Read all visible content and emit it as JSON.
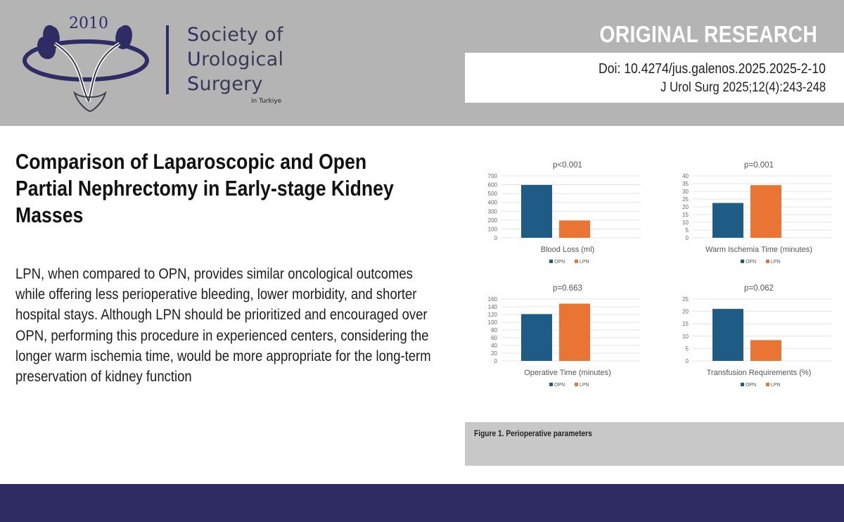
{
  "header": {
    "logo": {
      "year": "2010"
    },
    "society_lines": [
      {
        "initial": "S",
        "rest": "ociety of"
      },
      {
        "initial": "U",
        "rest": "rological"
      },
      {
        "initial": "S",
        "rest": "urgery"
      }
    ],
    "society_suffix": "in Turkiye",
    "section_label": "ORIGINAL RESEARCH",
    "doi": "Doi: 10.4274/jus.galenos.2025.2025-2-10",
    "citation": "J Urol Surg 2025;12(4):243-248"
  },
  "article": {
    "title_lines": [
      "Comparison of Laparoscopic and Open",
      "Partial Nephrectomy in Early-stage Kidney",
      "Masses"
    ],
    "abstract_lines": [
      "LPN, when compared to OPN, provides similar oncological outcomes",
      "while offering less perioperative bleeding, lower morbidity, and shorter",
      "hospital stays. Although LPN should be prioritized and encouraged over",
      "OPN, performing this procedure in experienced centers, considering the",
      "longer warm ischemia time, would be more appropriate for the long-term",
      "preservation of kidney function"
    ]
  },
  "figure": {
    "caption": "Figure 1. Perioperative parameters"
  },
  "colors": {
    "opn": "#1f5c85",
    "lpn": "#ea7434",
    "header_bg": "#b4b4b4",
    "brand_navy": "#2e2c63"
  },
  "chart_data": [
    {
      "type": "bar",
      "title": "p<0.001",
      "xlabel": "Blood Loss  (ml)",
      "ylim": [
        0,
        700
      ],
      "yticks": [
        0,
        100,
        200,
        300,
        400,
        500,
        600,
        700
      ],
      "series": [
        {
          "name": "OPN",
          "values": [
            597
          ]
        },
        {
          "name": "LPN",
          "values": [
            195
          ]
        }
      ],
      "legend": [
        "OPN",
        "LPN"
      ],
      "grid": true
    },
    {
      "type": "bar",
      "title": "p=0.001",
      "xlabel": "Warm Ischemia Time (minutes)",
      "ylim": [
        0,
        40
      ],
      "yticks": [
        0,
        5,
        10,
        15,
        20,
        25,
        30,
        35,
        40
      ],
      "series": [
        {
          "name": "OPN",
          "values": [
            22.5
          ]
        },
        {
          "name": "LPN",
          "values": [
            34
          ]
        }
      ],
      "legend": [
        "OPN",
        "LPN"
      ],
      "grid": true
    },
    {
      "type": "bar",
      "title": "p=0.663",
      "xlabel": "Operative Time (minutes)",
      "ylim": [
        0,
        160
      ],
      "yticks": [
        0,
        20,
        40,
        60,
        80,
        100,
        120,
        140,
        160
      ],
      "series": [
        {
          "name": "OPN",
          "values": [
            121
          ]
        },
        {
          "name": "LPN",
          "values": [
            148
          ]
        }
      ],
      "legend": [
        "OPN",
        "LPN"
      ],
      "grid": true
    },
    {
      "type": "bar",
      "title": "p=0.062",
      "xlabel": "Transfusion Requirements (%)",
      "ylim": [
        0,
        25
      ],
      "yticks": [
        0,
        5,
        10,
        15,
        20,
        25
      ],
      "series": [
        {
          "name": "OPN",
          "values": [
            21
          ]
        },
        {
          "name": "LPN",
          "values": [
            8.4
          ]
        }
      ],
      "legend": [
        "OPN",
        "LPN"
      ],
      "grid": true
    }
  ]
}
